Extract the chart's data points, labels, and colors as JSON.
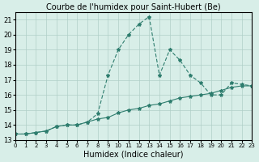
{
  "title": "Courbe de l'humidex pour Saint-Hubert (Be)",
  "xlabel": "Humidex (Indice chaleur)",
  "xlim": [
    0,
    23
  ],
  "ylim": [
    13,
    21.5
  ],
  "yticks": [
    13,
    14,
    15,
    16,
    17,
    18,
    19,
    20,
    21
  ],
  "xticks": [
    0,
    1,
    2,
    3,
    4,
    5,
    6,
    7,
    8,
    9,
    10,
    11,
    12,
    13,
    14,
    15,
    16,
    17,
    18,
    19,
    20,
    21,
    22,
    23
  ],
  "line1_x": [
    0,
    1,
    2,
    3,
    4,
    5,
    6,
    7,
    8,
    9,
    10,
    11,
    12,
    13,
    14,
    15,
    16,
    17,
    18,
    19,
    20,
    21,
    22,
    23
  ],
  "line1_y": [
    13.4,
    13.4,
    13.5,
    13.6,
    13.9,
    14.0,
    14.0,
    14.2,
    14.4,
    14.5,
    14.8,
    15.0,
    15.1,
    15.3,
    15.4,
    15.6,
    15.8,
    15.9,
    16.0,
    16.1,
    16.3,
    16.5,
    16.6,
    16.6
  ],
  "line2_x": [
    0,
    1,
    2,
    3,
    4,
    5,
    6,
    7,
    8,
    9,
    10,
    11,
    12,
    13,
    14,
    15,
    16,
    17,
    18,
    19,
    20,
    21,
    22,
    23
  ],
  "line2_y": [
    13.4,
    13.4,
    13.5,
    13.6,
    13.9,
    14.0,
    14.0,
    14.2,
    14.75,
    17.3,
    19.0,
    20.0,
    20.7,
    21.2,
    17.3,
    19.0,
    18.3,
    17.3,
    16.8,
    16.0,
    16.0,
    16.8,
    16.7,
    16.6
  ],
  "line_color": "#2e7d6e",
  "bg_color": "#d8eee8",
  "grid_color": "#b0cfc8",
  "title_fontsize": 7,
  "tick_fontsize": 6,
  "label_fontsize": 7
}
